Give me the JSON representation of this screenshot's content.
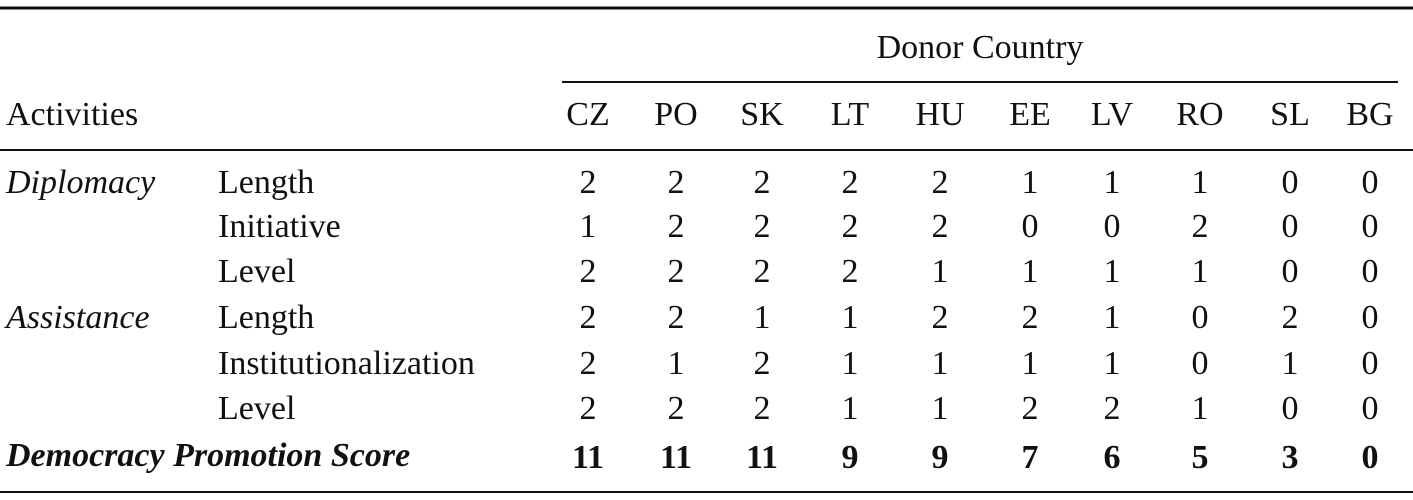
{
  "header": {
    "group_label": "Donor Country",
    "row_label": "Activities",
    "columns": [
      "CZ",
      "PO",
      "SK",
      "LT",
      "HU",
      "EE",
      "LV",
      "RO",
      "SL",
      "BG"
    ]
  },
  "rows": [
    {
      "category": "Diplomacy",
      "label": "Length",
      "values": [
        2,
        2,
        2,
        2,
        2,
        1,
        1,
        1,
        0,
        0
      ]
    },
    {
      "label": "Initiative",
      "values": [
        1,
        2,
        2,
        2,
        2,
        0,
        0,
        2,
        0,
        0
      ]
    },
    {
      "label": "Level",
      "values": [
        2,
        2,
        2,
        2,
        1,
        1,
        1,
        1,
        0,
        0
      ]
    },
    {
      "category": "Assistance",
      "label": "Length",
      "values": [
        2,
        2,
        1,
        1,
        2,
        2,
        1,
        0,
        2,
        0
      ]
    },
    {
      "label": "Institutionalization",
      "values": [
        2,
        1,
        2,
        1,
        1,
        1,
        1,
        0,
        1,
        0
      ]
    },
    {
      "label": "Level",
      "values": [
        2,
        2,
        2,
        1,
        1,
        2,
        2,
        1,
        0,
        0
      ]
    }
  ],
  "total": {
    "label": "Democracy Promotion Score",
    "values": [
      11,
      11,
      11,
      9,
      9,
      7,
      6,
      5,
      3,
      0
    ]
  }
}
